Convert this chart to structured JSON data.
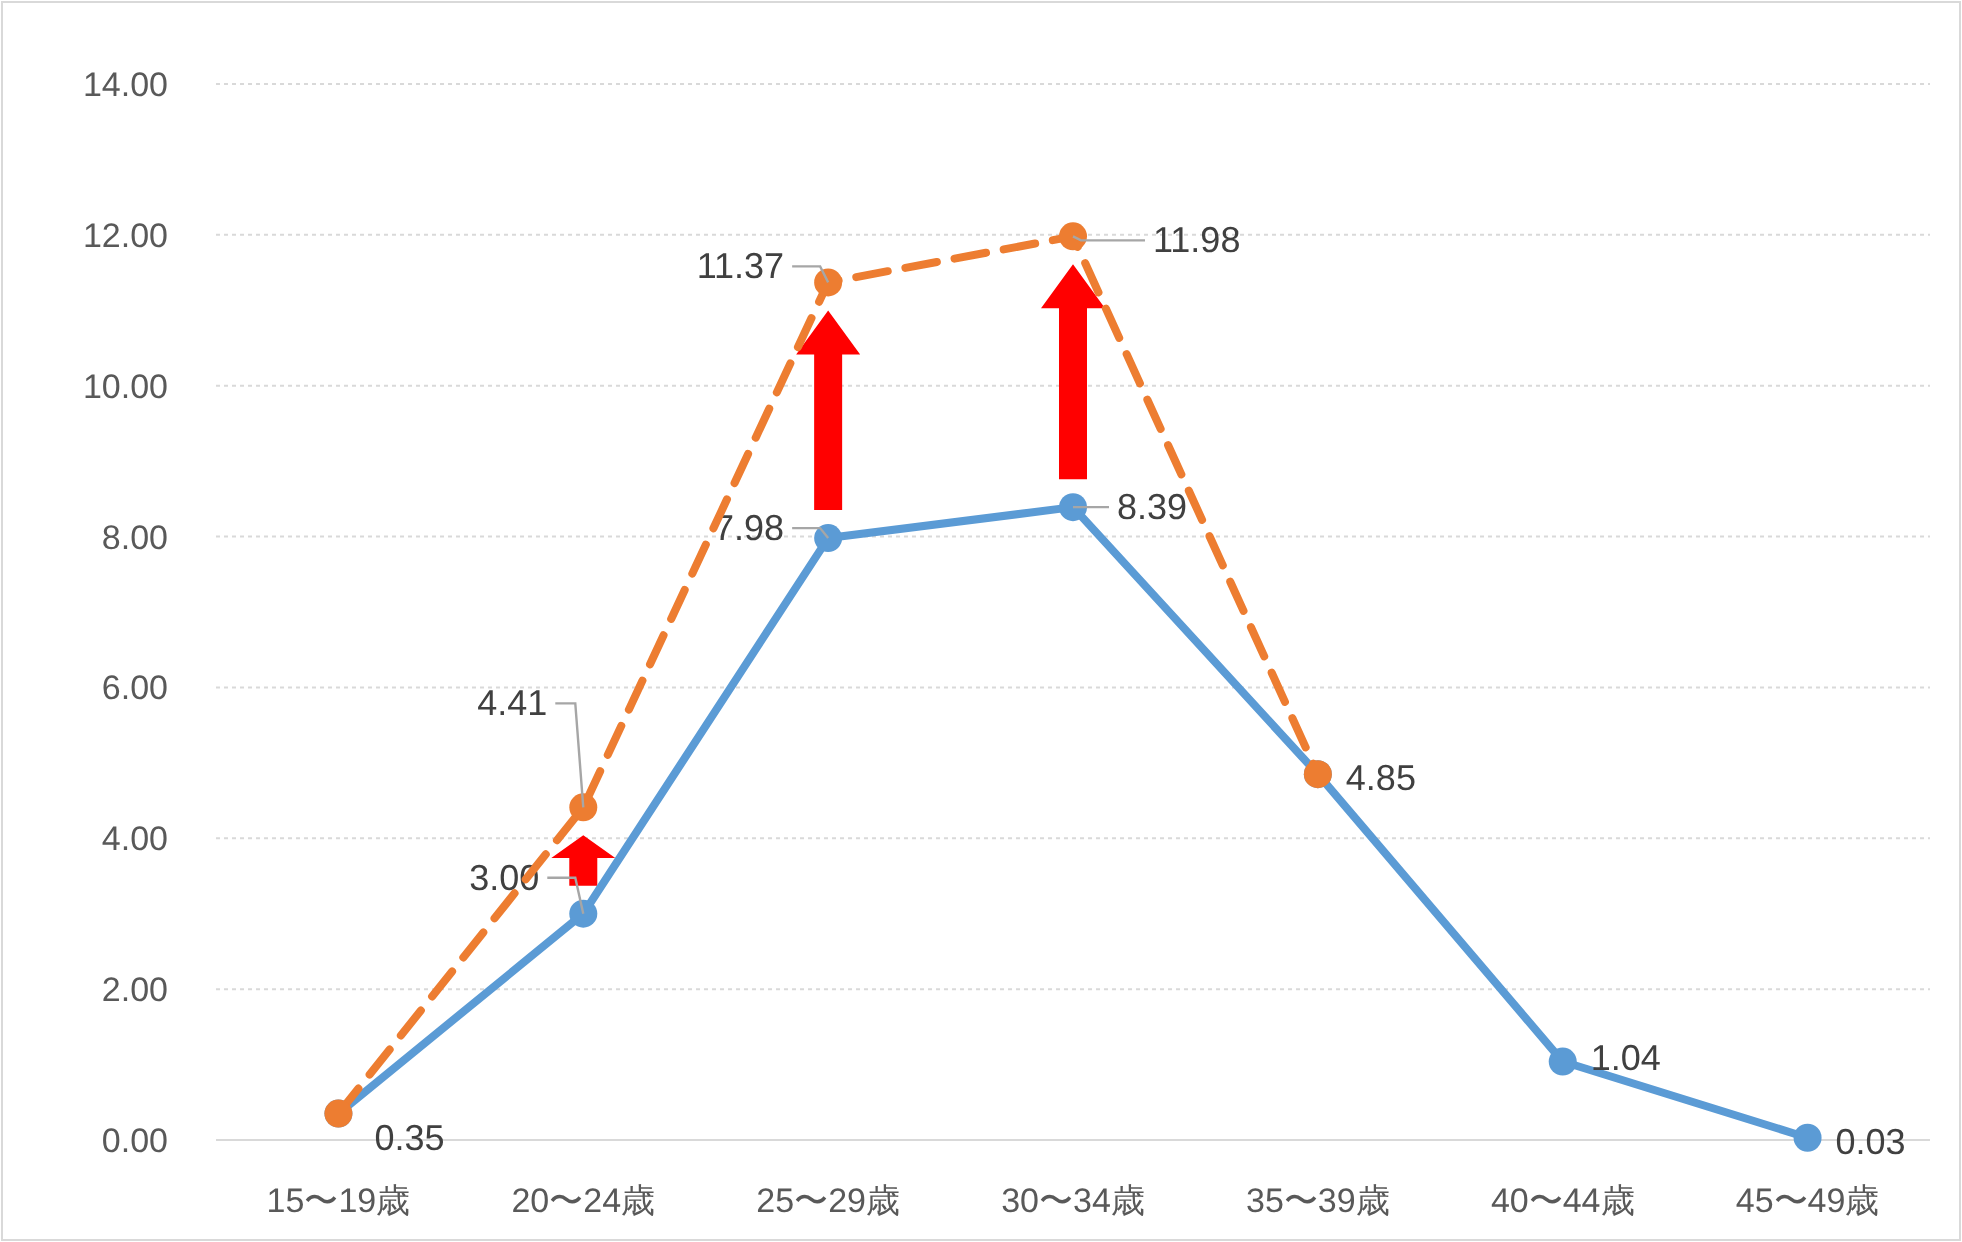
{
  "chart_data": {
    "type": "line",
    "categories": [
      "15〜19歳",
      "20〜24歳",
      "25〜29歳",
      "30〜34歳",
      "35〜39歳",
      "40〜44歳",
      "45〜49歳"
    ],
    "ylim": [
      0,
      14
    ],
    "yticks": [
      {
        "value": 0,
        "label": "0.00"
      },
      {
        "value": 2,
        "label": "2.00"
      },
      {
        "value": 4,
        "label": "4.00"
      },
      {
        "value": 6,
        "label": "6.00"
      },
      {
        "value": 8,
        "label": "8.00"
      },
      {
        "value": 10,
        "label": "10.00"
      },
      {
        "value": 12,
        "label": "12.00"
      },
      {
        "value": 14,
        "label": "14.00"
      }
    ],
    "grid": "y",
    "marker": "circle",
    "series": [
      {
        "color": "#ed7d31",
        "line_style": "dashed",
        "values": [
          0.35,
          4.41,
          11.37,
          11.98,
          4.85,
          null,
          null
        ],
        "value_labels": [
          null,
          "4.41",
          "11.37",
          "11.98",
          null,
          null,
          null
        ]
      },
      {
        "color": "#5b9bd5",
        "line_style": "solid",
        "values": [
          0.35,
          3.0,
          7.98,
          8.39,
          4.85,
          1.04,
          0.03
        ],
        "value_labels": [
          "0.35",
          "3.00",
          "7.98",
          "8.39",
          "4.85",
          "1.04",
          "0.03"
        ]
      }
    ]
  }
}
